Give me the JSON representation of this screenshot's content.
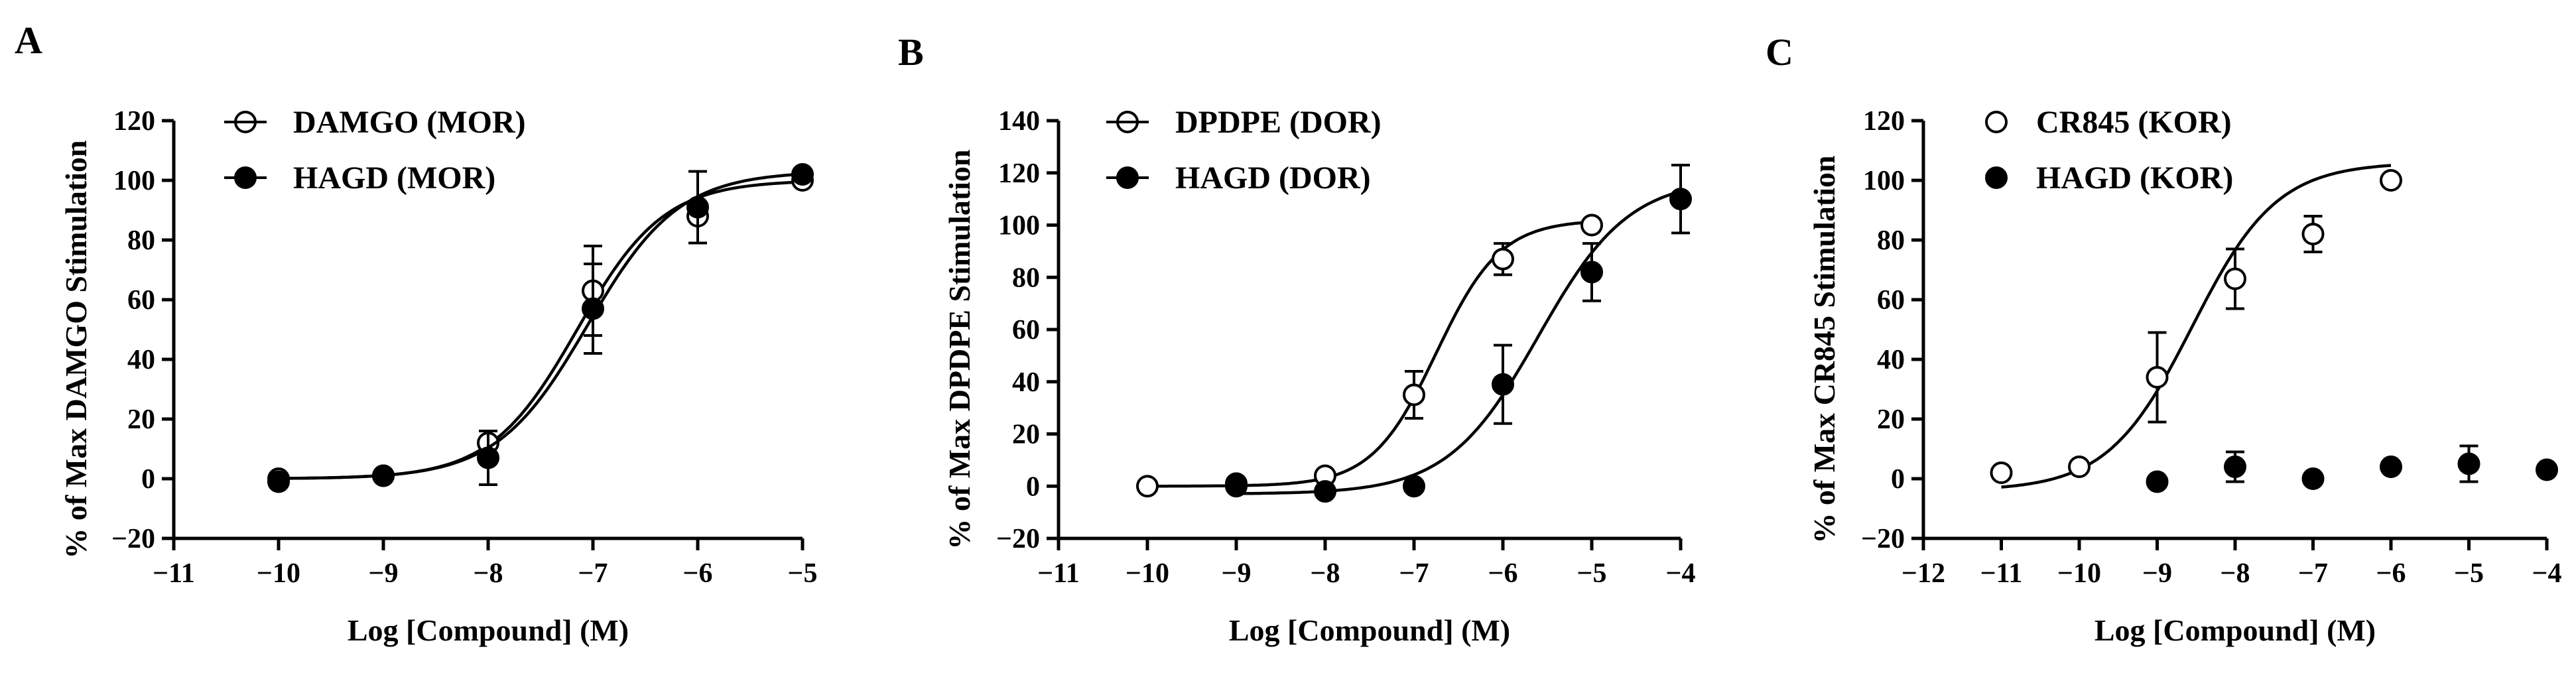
{
  "figure": {
    "panels": [
      {
        "letter": "A",
        "chart_ref": 0
      },
      {
        "letter": "B",
        "chart_ref": 1
      },
      {
        "letter": "C",
        "chart_ref": 2
      }
    ]
  },
  "chart_data": [
    {
      "type": "scatter",
      "panel": "A",
      "title": "",
      "xlabel": "Log [Compound] (M)",
      "ylabel": "% of Max DAMGO Stimulation",
      "xlim": [
        -11,
        -5
      ],
      "ylim": [
        -20,
        120
      ],
      "x_ticks": [
        -11,
        -10,
        -9,
        -8,
        -7,
        -6,
        -5
      ],
      "y_ticks": [
        -20,
        0,
        20,
        40,
        60,
        80,
        100,
        120
      ],
      "x_tick_labels": [
        "−11",
        "−10",
        "−9",
        "−8",
        "−7",
        "−6",
        "−5"
      ],
      "y_tick_labels": [
        "−20",
        "0",
        "20",
        "40",
        "60",
        "80",
        "100",
        "120"
      ],
      "legend_position": "top-left",
      "series": [
        {
          "name": "DAMGO (MOR)",
          "marker": "open-circle",
          "x": [
            -10,
            -9,
            -8,
            -7,
            -6,
            -5
          ],
          "y": [
            0,
            1,
            12,
            63,
            88,
            100
          ],
          "err": [
            0,
            0,
            0,
            15,
            0,
            0
          ],
          "fit": {
            "bottom": 0,
            "top": 100,
            "logEC50": -7.15,
            "hill": 1.05
          }
        },
        {
          "name": "HAGD (MOR)",
          "marker": "filled-circle",
          "x": [
            -10,
            -9,
            -8,
            -7,
            -6,
            -5
          ],
          "y": [
            -1,
            1,
            7,
            57,
            91,
            102
          ],
          "err": [
            0,
            0,
            9,
            15,
            12,
            0
          ],
          "fit": {
            "bottom": 0,
            "top": 103,
            "logEC50": -7.05,
            "hill": 1.0
          }
        }
      ]
    },
    {
      "type": "scatter",
      "panel": "B",
      "title": "",
      "xlabel": "Log [Compound] (M)",
      "ylabel": "% of Max DPDPE Stimulation",
      "xlim": [
        -11,
        -4
      ],
      "ylim": [
        -20,
        140
      ],
      "x_ticks": [
        -11,
        -10,
        -9,
        -8,
        -7,
        -6,
        -5,
        -4
      ],
      "y_ticks": [
        -20,
        0,
        20,
        40,
        60,
        80,
        100,
        120,
        140
      ],
      "x_tick_labels": [
        "−11",
        "−10",
        "−9",
        "−8",
        "−7",
        "−6",
        "−5",
        "−4"
      ],
      "y_tick_labels": [
        "−20",
        "0",
        "20",
        "40",
        "60",
        "80",
        "100",
        "120",
        "140"
      ],
      "legend_position": "top-left",
      "series": [
        {
          "name": "DPDPE (DOR)",
          "marker": "open-circle",
          "x": [
            -10,
            -9,
            -8,
            -7,
            -6,
            -5
          ],
          "y": [
            0,
            0,
            4,
            35,
            87,
            100
          ],
          "err": [
            0,
            0,
            0,
            9,
            6,
            0
          ],
          "fit": {
            "bottom": 0,
            "top": 102,
            "logEC50": -6.75,
            "hill": 1.2
          }
        },
        {
          "name": "HAGD (DOR)",
          "marker": "filled-circle",
          "x": [
            -9,
            -8,
            -7,
            -6,
            -5,
            -4
          ],
          "y": [
            1,
            -2,
            0,
            39,
            82,
            110
          ],
          "err": [
            0,
            0,
            0,
            15,
            11,
            13
          ],
          "fit": {
            "bottom": -3,
            "top": 118,
            "logEC50": -5.6,
            "hill": 0.85
          }
        }
      ]
    },
    {
      "type": "scatter",
      "panel": "C",
      "title": "",
      "xlabel": "Log [Compound] (M)",
      "ylabel": "% of Max CR845 Stimulation",
      "xlim": [
        -12,
        -4
      ],
      "ylim": [
        -20,
        120
      ],
      "x_ticks": [
        -12,
        -11,
        -10,
        -9,
        -8,
        -7,
        -6,
        -5,
        -4
      ],
      "y_ticks": [
        -20,
        0,
        20,
        40,
        60,
        80,
        100,
        120
      ],
      "x_tick_labels": [
        "−12",
        "−11",
        "−10",
        "−9",
        "−8",
        "−7",
        "−6",
        "−5",
        "−4"
      ],
      "y_tick_labels": [
        "−20",
        "0",
        "20",
        "40",
        "60",
        "80",
        "100",
        "120"
      ],
      "legend_position": "top-left",
      "series": [
        {
          "name": "CR845 (KOR)",
          "marker": "open-circle",
          "x": [
            -11,
            -10,
            -9,
            -8,
            -7,
            -6
          ],
          "y": [
            2,
            4,
            34,
            67,
            82,
            100
          ],
          "err": [
            0,
            0,
            15,
            10,
            6,
            0
          ],
          "fit": {
            "bottom": -4,
            "top": 106,
            "logEC50": -8.55,
            "hill": 0.8,
            "x_range": [
              -11,
              -6
            ]
          }
        },
        {
          "name": "HAGD (KOR)",
          "marker": "filled-circle",
          "x": [
            -9,
            -8,
            -7,
            -6,
            -5,
            -4
          ],
          "y": [
            -1,
            4,
            0,
            4,
            5,
            3
          ],
          "err": [
            0,
            5,
            0,
            0,
            6,
            0
          ]
        }
      ]
    }
  ]
}
